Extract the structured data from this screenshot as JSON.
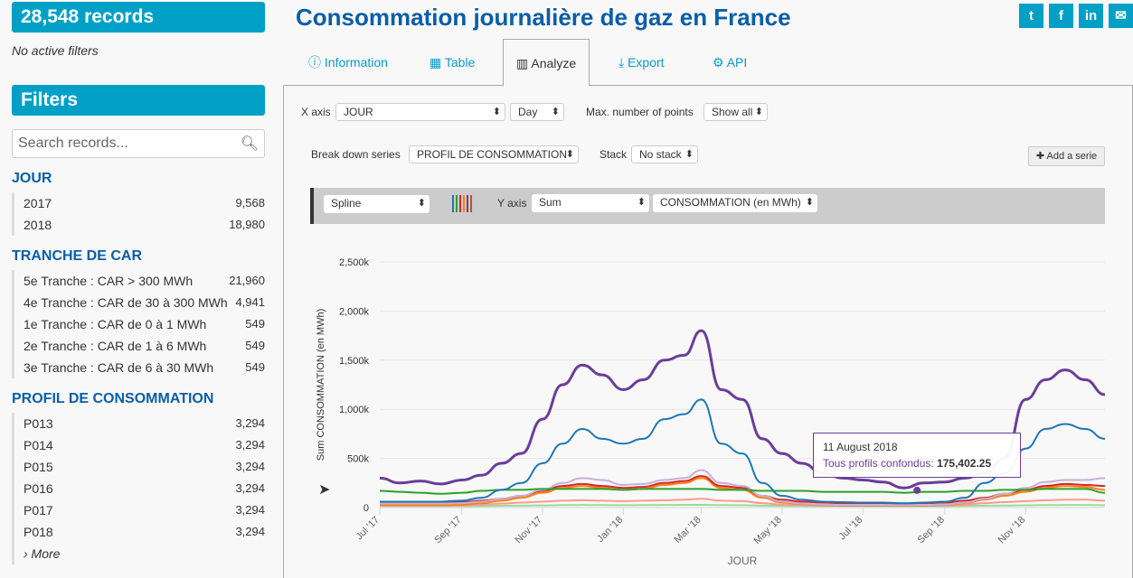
{
  "sidebar": {
    "records": "28,548 records",
    "no_filters": "No active filters",
    "filters_title": "Filters",
    "search_placeholder": "Search records...",
    "groups": [
      {
        "title": "JOUR",
        "items": [
          {
            "label": "2017",
            "count": "9,568"
          },
          {
            "label": "2018",
            "count": "18,980"
          }
        ]
      },
      {
        "title": "TRANCHE DE CAR",
        "items": [
          {
            "label": "5e Tranche : CAR > 300 MWh",
            "count": "21,960"
          },
          {
            "label": "4e Tranche : CAR de 30 à 300 MWh",
            "count": "4,941"
          },
          {
            "label": "1e Tranche : CAR de 0 à 1 MWh",
            "count": "549"
          },
          {
            "label": "2e Tranche : CAR de 1 à 6 MWh",
            "count": "549"
          },
          {
            "label": "3e Tranche : CAR de 6 à 30 MWh",
            "count": "549"
          }
        ]
      },
      {
        "title": "PROFIL DE CONSOMMATION",
        "items": [
          {
            "label": "P013",
            "count": "3,294"
          },
          {
            "label": "P014",
            "count": "3,294"
          },
          {
            "label": "P015",
            "count": "3,294"
          },
          {
            "label": "P016",
            "count": "3,294"
          },
          {
            "label": "P017",
            "count": "3,294"
          },
          {
            "label": "P018",
            "count": "3,294"
          }
        ],
        "more": "› More"
      }
    ]
  },
  "header": {
    "title": "Consommation journalière de gaz en France",
    "social": [
      {
        "icon": "twitter-icon",
        "glyph": "t"
      },
      {
        "icon": "facebook-icon",
        "glyph": "f"
      },
      {
        "icon": "linkedin-icon",
        "glyph": "in"
      },
      {
        "icon": "email-icon",
        "glyph": "✉"
      }
    ]
  },
  "tabs": [
    {
      "label": "Information",
      "icon": "ⓘ"
    },
    {
      "label": "Table",
      "icon": "▦"
    },
    {
      "label": "Analyze",
      "icon": "📊"
    },
    {
      "label": "Export",
      "icon": "⤓"
    },
    {
      "label": "API",
      "icon": "⚙"
    }
  ],
  "controls": {
    "x_axis_label": "X axis",
    "x_axis": "JOUR",
    "x_interval": "Day",
    "max_points_label": "Max. number of points",
    "max_points": "Show all",
    "breakdown_label": "Break down series",
    "breakdown": "PROFIL DE CONSOMMATION",
    "stack_label": "Stack",
    "stack": "No stack",
    "add_serie": "✚ Add a serie",
    "chart_type": "Spline",
    "y_axis_label": "Y axis",
    "y_func": "Sum",
    "y_field": "CONSOMMATION (en MWh)",
    "palette": [
      "#1f77b4",
      "#2ca02c",
      "#d62728",
      "#ff7f0e",
      "#6a3d9a",
      "#b15928"
    ]
  },
  "tooltip": {
    "date": "11 August 2018",
    "series": "Tous profils confondus",
    "value": "175,402.25"
  },
  "chart_data": {
    "type": "line",
    "ylabel": "Sum CONSOMMATION (en MWh)",
    "xlabel": "JOUR",
    "ylim": [
      0,
      2500000
    ],
    "yticks": [
      "0",
      "500k",
      "1,000k",
      "1,500k",
      "2,000k",
      "2,500k"
    ],
    "xticks": [
      {
        "label": "Jul '17",
        "date": "2017-07-01"
      },
      {
        "label": "Sep '17",
        "date": "2017-09-01"
      },
      {
        "label": "Nov '17",
        "date": "2017-11-01"
      },
      {
        "label": "Jan '18",
        "date": "2018-01-01"
      },
      {
        "label": "Mar '18",
        "date": "2018-03-01"
      },
      {
        "label": "May '18",
        "date": "2018-05-01"
      },
      {
        "label": "Jul '18",
        "date": "2018-07-01"
      },
      {
        "label": "Sep '18",
        "date": "2018-09-01"
      },
      {
        "label": "Nov '18",
        "date": "2018-11-01"
      }
    ],
    "x": [
      "2017-07-01",
      "2017-07-16",
      "2017-08-01",
      "2017-08-16",
      "2017-09-01",
      "2017-09-16",
      "2017-10-01",
      "2017-10-16",
      "2017-11-01",
      "2017-11-16",
      "2017-12-01",
      "2017-12-16",
      "2018-01-01",
      "2018-01-16",
      "2018-02-01",
      "2018-02-16",
      "2018-03-01",
      "2018-03-16",
      "2018-04-01",
      "2018-04-16",
      "2018-05-01",
      "2018-05-16",
      "2018-06-01",
      "2018-06-16",
      "2018-07-01",
      "2018-07-16",
      "2018-08-01",
      "2018-08-16",
      "2018-09-01",
      "2018-09-16",
      "2018-10-01",
      "2018-10-16",
      "2018-11-01",
      "2018-11-16",
      "2018-12-01",
      "2018-12-16",
      "2018-12-31"
    ],
    "series": [
      {
        "name": "Tous profils confondus",
        "color": "#6a3d9a",
        "values": [
          300000,
          250000,
          270000,
          240000,
          280000,
          330000,
          450000,
          550000,
          900000,
          1250000,
          1450000,
          1350000,
          1200000,
          1300000,
          1500000,
          1550000,
          1800000,
          1200000,
          1100000,
          700000,
          550000,
          450000,
          350000,
          300000,
          280000,
          260000,
          200000,
          250000,
          260000,
          300000,
          350000,
          500000,
          1100000,
          1300000,
          1400000,
          1300000,
          1150000
        ]
      },
      {
        "color": "#1f77b4",
        "values": [
          60000,
          60000,
          60000,
          60000,
          70000,
          100000,
          180000,
          250000,
          450000,
          650000,
          800000,
          700000,
          650000,
          700000,
          900000,
          950000,
          1100000,
          650000,
          550000,
          250000,
          120000,
          80000,
          60000,
          55000,
          50000,
          50000,
          45000,
          50000,
          60000,
          100000,
          250000,
          350000,
          600000,
          800000,
          850000,
          800000,
          700000
        ]
      },
      {
        "color": "#2ca02c",
        "values": [
          170000,
          160000,
          150000,
          140000,
          150000,
          170000,
          180000,
          180000,
          190000,
          190000,
          190000,
          190000,
          180000,
          190000,
          190000,
          190000,
          190000,
          180000,
          180000,
          170000,
          170000,
          170000,
          160000,
          160000,
          160000,
          160000,
          150000,
          160000,
          160000,
          170000,
          170000,
          180000,
          180000,
          190000,
          190000,
          190000,
          150000
        ]
      },
      {
        "color": "#c5b0d5",
        "values": [
          40000,
          40000,
          40000,
          40000,
          45000,
          60000,
          90000,
          120000,
          180000,
          250000,
          300000,
          280000,
          230000,
          240000,
          280000,
          300000,
          380000,
          250000,
          220000,
          120000,
          60000,
          40000,
          30000,
          25000,
          25000,
          25000,
          25000,
          25000,
          30000,
          50000,
          90000,
          140000,
          200000,
          260000,
          280000,
          280000,
          300000
        ]
      },
      {
        "color": "#d62728",
        "values": [
          50000,
          50000,
          50000,
          50000,
          55000,
          70000,
          90000,
          120000,
          170000,
          220000,
          240000,
          220000,
          200000,
          210000,
          250000,
          270000,
          320000,
          220000,
          200000,
          120000,
          80000,
          60000,
          50000,
          45000,
          45000,
          45000,
          40000,
          45000,
          50000,
          70000,
          100000,
          140000,
          180000,
          220000,
          240000,
          230000,
          220000
        ]
      },
      {
        "color": "#ff7f0e",
        "values": [
          25000,
          25000,
          25000,
          25000,
          30000,
          45000,
          70000,
          100000,
          150000,
          200000,
          220000,
          200000,
          180000,
          190000,
          230000,
          250000,
          300000,
          200000,
          180000,
          100000,
          50000,
          35000,
          25000,
          20000,
          20000,
          20000,
          20000,
          20000,
          25000,
          45000,
          80000,
          120000,
          160000,
          200000,
          220000,
          210000,
          180000
        ]
      },
      {
        "color": "#ff9896",
        "values": [
          20000,
          20000,
          20000,
          20000,
          22000,
          30000,
          40000,
          50000,
          60000,
          70000,
          75000,
          70000,
          65000,
          70000,
          75000,
          80000,
          90000,
          70000,
          65000,
          45000,
          30000,
          25000,
          20000,
          20000,
          20000,
          20000,
          20000,
          20000,
          22000,
          30000,
          45000,
          55000,
          65000,
          75000,
          80000,
          80000,
          70000
        ]
      },
      {
        "color": "#98df8a",
        "values": [
          15000,
          15000,
          15000,
          15000,
          15000,
          16000,
          18000,
          20000,
          22000,
          25000,
          26000,
          25000,
          24000,
          25000,
          26000,
          27000,
          28000,
          25000,
          24000,
          20000,
          17000,
          16000,
          15000,
          15000,
          15000,
          15000,
          15000,
          15000,
          15000,
          17000,
          19000,
          21000,
          23000,
          25000,
          26000,
          26000,
          24000
        ]
      }
    ]
  }
}
